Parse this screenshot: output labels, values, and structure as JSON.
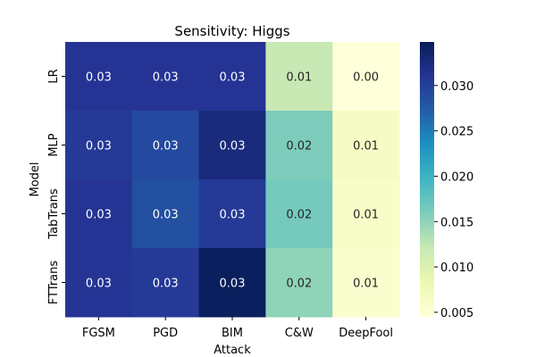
{
  "chart_data": {
    "type": "heatmap",
    "title": "Sensitivity: Higgs",
    "xlabel": "Attack",
    "ylabel": "Model",
    "x_categories": [
      "FGSM",
      "PGD",
      "BIM",
      "C&W",
      "DeepFool"
    ],
    "y_categories": [
      "LR",
      "MLP",
      "TabTrans",
      "FTTrans"
    ],
    "values": [
      [
        0.031,
        0.031,
        0.031,
        0.012,
        0.0045
      ],
      [
        0.0305,
        0.029,
        0.0325,
        0.016,
        0.0065
      ],
      [
        0.031,
        0.0285,
        0.0305,
        0.0165,
        0.006
      ],
      [
        0.031,
        0.0305,
        0.0345,
        0.015,
        0.0055
      ]
    ],
    "value_labels": [
      [
        "0.03",
        "0.03",
        "0.03",
        "0.01",
        "0.00"
      ],
      [
        "0.03",
        "0.03",
        "0.03",
        "0.02",
        "0.01"
      ],
      [
        "0.03",
        "0.03",
        "0.03",
        "0.02",
        "0.01"
      ],
      [
        "0.03",
        "0.03",
        "0.03",
        "0.02",
        "0.01"
      ]
    ],
    "colormap": "YlGnBu",
    "colorbar": {
      "range": [
        0.0045,
        0.0348
      ],
      "ticks": [
        0.005,
        0.01,
        0.015,
        0.02,
        0.025,
        0.03
      ],
      "tick_labels": [
        "0.005",
        "0.010",
        "0.015",
        "0.020",
        "0.025",
        "0.030"
      ]
    },
    "grid": false,
    "legend": "colorbar-right"
  }
}
